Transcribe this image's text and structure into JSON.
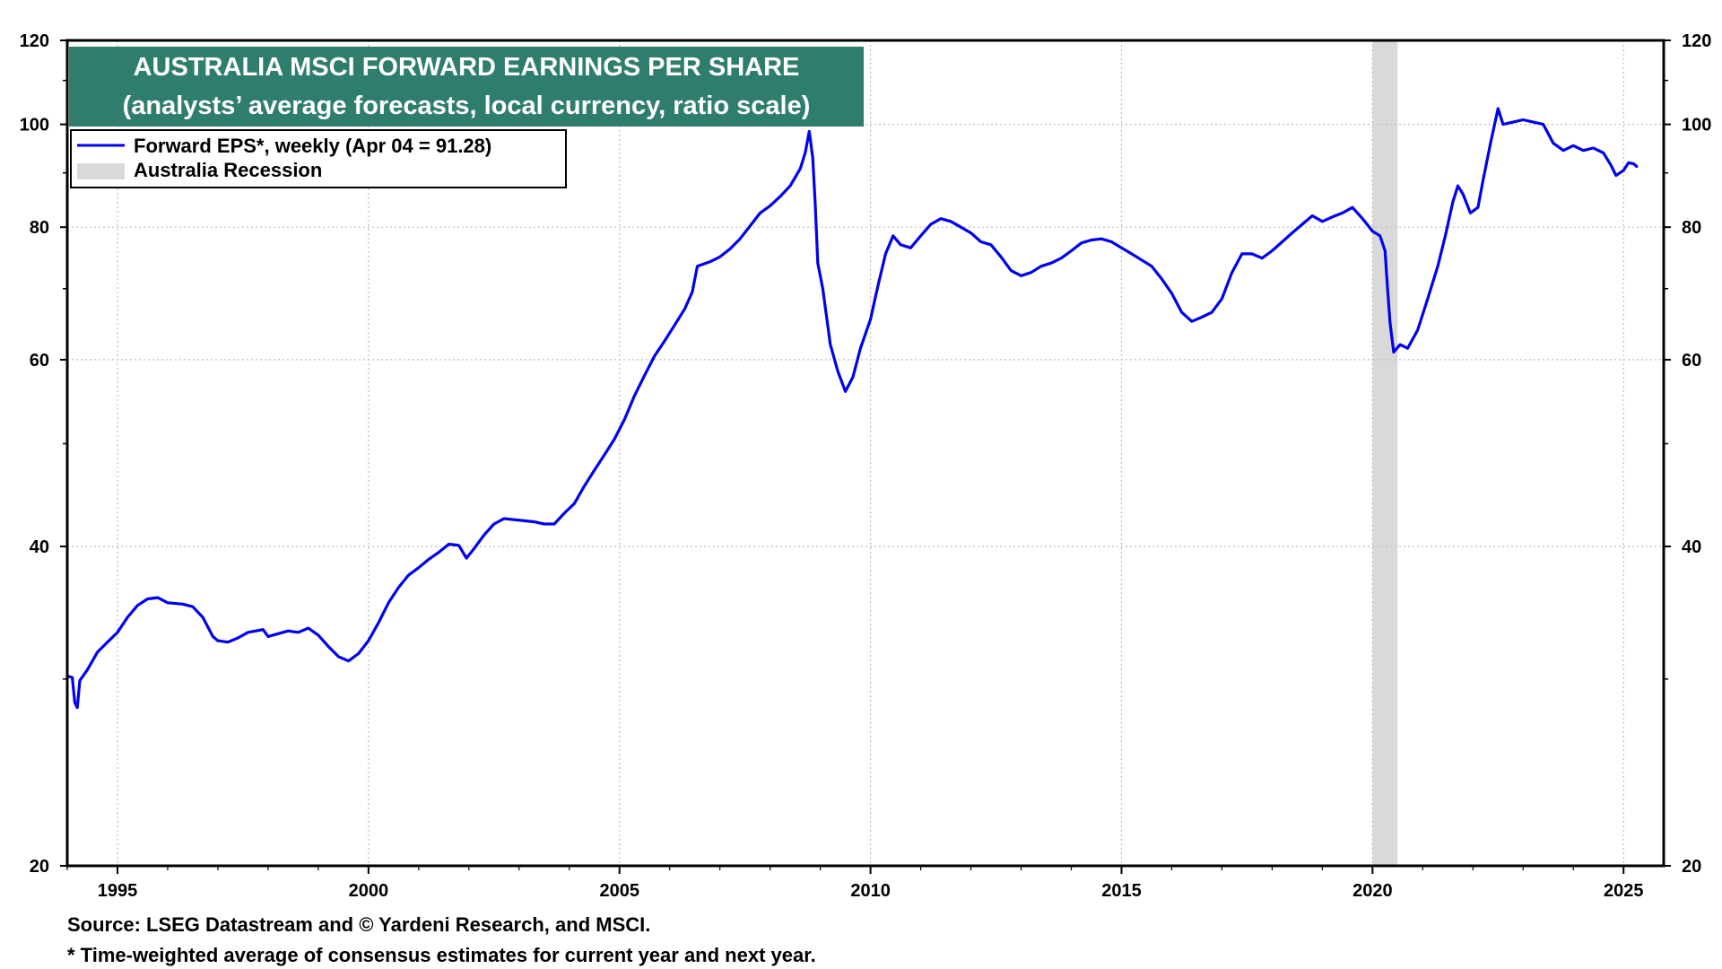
{
  "chart_data": {
    "type": "line",
    "title": "AUSTRALIA MSCI FORWARD EARNINGS PER SHARE",
    "subtitle": "(analysts’ average forecasts, local currency, ratio scale)",
    "yscale": "log",
    "ylim": [
      20,
      120
    ],
    "xlim": [
      1994.0,
      2025.8
    ],
    "y_ticks_labeled": [
      "20",
      "40",
      "60",
      "80",
      "100",
      "120"
    ],
    "y_ticks_minor": [
      30,
      50,
      70,
      90,
      110
    ],
    "x_ticks": [
      "1995",
      "2000",
      "2005",
      "2010",
      "2015",
      "2020",
      "2025"
    ],
    "grid": true,
    "legend_position": "top-left",
    "legend": {
      "series_label": "Forward EPS*, weekly (Apr 04 = 91.28)",
      "recession_label": "Australia Recession"
    },
    "recessions": [
      {
        "start": 2020.0,
        "end": 2020.5
      }
    ],
    "colors": {
      "series": "#0000ee",
      "recession": "#d9d9d9",
      "title_bg": "#2e7d6d",
      "title_text": "#ffffff"
    },
    "series": [
      {
        "name": "Forward EPS*, weekly (Apr 04 = 91.28)",
        "points": [
          [
            1994.0,
            30.2
          ],
          [
            1994.1,
            30.1
          ],
          [
            1994.15,
            28.5
          ],
          [
            1994.2,
            28.2
          ],
          [
            1994.25,
            29.9
          ],
          [
            1994.4,
            30.6
          ],
          [
            1994.6,
            31.8
          ],
          [
            1994.8,
            32.5
          ],
          [
            1995.0,
            33.2
          ],
          [
            1995.2,
            34.3
          ],
          [
            1995.4,
            35.2
          ],
          [
            1995.6,
            35.7
          ],
          [
            1995.8,
            35.8
          ],
          [
            1996.0,
            35.4
          ],
          [
            1996.3,
            35.3
          ],
          [
            1996.5,
            35.1
          ],
          [
            1996.7,
            34.3
          ],
          [
            1996.9,
            32.9
          ],
          [
            1997.0,
            32.6
          ],
          [
            1997.2,
            32.5
          ],
          [
            1997.4,
            32.8
          ],
          [
            1997.6,
            33.2
          ],
          [
            1997.9,
            33.4
          ],
          [
            1998.0,
            32.9
          ],
          [
            1998.2,
            33.1
          ],
          [
            1998.4,
            33.3
          ],
          [
            1998.6,
            33.2
          ],
          [
            1998.8,
            33.5
          ],
          [
            1999.0,
            33.0
          ],
          [
            1999.2,
            32.2
          ],
          [
            1999.4,
            31.5
          ],
          [
            1999.6,
            31.2
          ],
          [
            1999.8,
            31.7
          ],
          [
            2000.0,
            32.6
          ],
          [
            2000.2,
            33.9
          ],
          [
            2000.4,
            35.4
          ],
          [
            2000.6,
            36.6
          ],
          [
            2000.8,
            37.6
          ],
          [
            2001.0,
            38.2
          ],
          [
            2001.2,
            38.9
          ],
          [
            2001.4,
            39.5
          ],
          [
            2001.6,
            40.2
          ],
          [
            2001.8,
            40.1
          ],
          [
            2001.95,
            39.0
          ],
          [
            2002.1,
            39.8
          ],
          [
            2002.3,
            41.0
          ],
          [
            2002.5,
            42.0
          ],
          [
            2002.7,
            42.5
          ],
          [
            2002.9,
            42.4
          ],
          [
            2003.1,
            42.3
          ],
          [
            2003.3,
            42.2
          ],
          [
            2003.5,
            42.0
          ],
          [
            2003.7,
            42.0
          ],
          [
            2003.9,
            43.0
          ],
          [
            2004.1,
            43.9
          ],
          [
            2004.3,
            45.6
          ],
          [
            2004.5,
            47.2
          ],
          [
            2004.7,
            48.8
          ],
          [
            2004.9,
            50.5
          ],
          [
            2005.1,
            52.7
          ],
          [
            2005.3,
            55.5
          ],
          [
            2005.5,
            58.0
          ],
          [
            2005.7,
            60.5
          ],
          [
            2005.9,
            62.5
          ],
          [
            2006.1,
            64.7
          ],
          [
            2006.3,
            67.0
          ],
          [
            2006.45,
            69.5
          ],
          [
            2006.55,
            73.5
          ],
          [
            2006.8,
            74.2
          ],
          [
            2007.0,
            75.0
          ],
          [
            2007.2,
            76.3
          ],
          [
            2007.4,
            78.0
          ],
          [
            2007.6,
            80.2
          ],
          [
            2007.8,
            82.5
          ],
          [
            2008.0,
            83.8
          ],
          [
            2008.2,
            85.5
          ],
          [
            2008.4,
            87.5
          ],
          [
            2008.6,
            90.8
          ],
          [
            2008.7,
            94.0
          ],
          [
            2008.78,
            98.5
          ],
          [
            2008.85,
            93.0
          ],
          [
            2008.9,
            84.0
          ],
          [
            2008.95,
            74.0
          ],
          [
            2009.05,
            70.0
          ],
          [
            2009.2,
            62.0
          ],
          [
            2009.35,
            58.5
          ],
          [
            2009.5,
            56.0
          ],
          [
            2009.65,
            57.8
          ],
          [
            2009.8,
            61.5
          ],
          [
            2010.0,
            65.5
          ],
          [
            2010.15,
            70.5
          ],
          [
            2010.3,
            75.5
          ],
          [
            2010.45,
            78.5
          ],
          [
            2010.6,
            77.0
          ],
          [
            2010.8,
            76.5
          ],
          [
            2011.0,
            78.5
          ],
          [
            2011.2,
            80.5
          ],
          [
            2011.4,
            81.5
          ],
          [
            2011.6,
            81.0
          ],
          [
            2011.8,
            80.0
          ],
          [
            2012.0,
            79.0
          ],
          [
            2012.2,
            77.5
          ],
          [
            2012.4,
            77.0
          ],
          [
            2012.6,
            75.0
          ],
          [
            2012.8,
            72.8
          ],
          [
            2013.0,
            72.0
          ],
          [
            2013.2,
            72.5
          ],
          [
            2013.4,
            73.5
          ],
          [
            2013.6,
            74.0
          ],
          [
            2013.8,
            74.8
          ],
          [
            2014.0,
            76.0
          ],
          [
            2014.2,
            77.3
          ],
          [
            2014.4,
            77.8
          ],
          [
            2014.6,
            78.0
          ],
          [
            2014.8,
            77.5
          ],
          [
            2015.0,
            76.5
          ],
          [
            2015.2,
            75.5
          ],
          [
            2015.4,
            74.5
          ],
          [
            2015.6,
            73.5
          ],
          [
            2015.8,
            71.5
          ],
          [
            2016.0,
            69.3
          ],
          [
            2016.2,
            66.5
          ],
          [
            2016.4,
            65.2
          ],
          [
            2016.6,
            65.8
          ],
          [
            2016.8,
            66.5
          ],
          [
            2017.0,
            68.5
          ],
          [
            2017.2,
            72.5
          ],
          [
            2017.4,
            75.5
          ],
          [
            2017.6,
            75.5
          ],
          [
            2017.8,
            74.8
          ],
          [
            2018.0,
            76.0
          ],
          [
            2018.2,
            77.5
          ],
          [
            2018.4,
            79.0
          ],
          [
            2018.6,
            80.5
          ],
          [
            2018.8,
            82.0
          ],
          [
            2019.0,
            81.0
          ],
          [
            2019.2,
            81.8
          ],
          [
            2019.4,
            82.5
          ],
          [
            2019.6,
            83.5
          ],
          [
            2019.8,
            81.5
          ],
          [
            2020.0,
            79.3
          ],
          [
            2020.15,
            78.5
          ],
          [
            2020.25,
            76.0
          ],
          [
            2020.3,
            70.0
          ],
          [
            2020.35,
            65.0
          ],
          [
            2020.42,
            61.0
          ],
          [
            2020.55,
            62.0
          ],
          [
            2020.7,
            61.5
          ],
          [
            2020.9,
            64.0
          ],
          [
            2021.1,
            68.5
          ],
          [
            2021.3,
            73.5
          ],
          [
            2021.45,
            78.5
          ],
          [
            2021.6,
            84.5
          ],
          [
            2021.7,
            87.5
          ],
          [
            2021.8,
            86.0
          ],
          [
            2021.95,
            82.5
          ],
          [
            2022.1,
            83.5
          ],
          [
            2022.2,
            88.5
          ],
          [
            2022.35,
            96.0
          ],
          [
            2022.5,
            103.5
          ],
          [
            2022.6,
            100.0
          ],
          [
            2022.8,
            100.5
          ],
          [
            2023.0,
            101.0
          ],
          [
            2023.2,
            100.5
          ],
          [
            2023.4,
            100.0
          ],
          [
            2023.6,
            96.0
          ],
          [
            2023.8,
            94.5
          ],
          [
            2024.0,
            95.5
          ],
          [
            2024.2,
            94.5
          ],
          [
            2024.4,
            95.0
          ],
          [
            2024.6,
            94.0
          ],
          [
            2024.75,
            91.5
          ],
          [
            2024.85,
            89.5
          ],
          [
            2025.0,
            90.5
          ],
          [
            2025.1,
            92.0
          ],
          [
            2025.2,
            91.8
          ],
          [
            2025.26,
            91.28
          ]
        ]
      }
    ]
  },
  "footnotes": {
    "source": "Source: LSEG Datastream and © Yardeni Research, and MSCI.",
    "note": "* Time-weighted average of consensus estimates for current year and next year."
  }
}
